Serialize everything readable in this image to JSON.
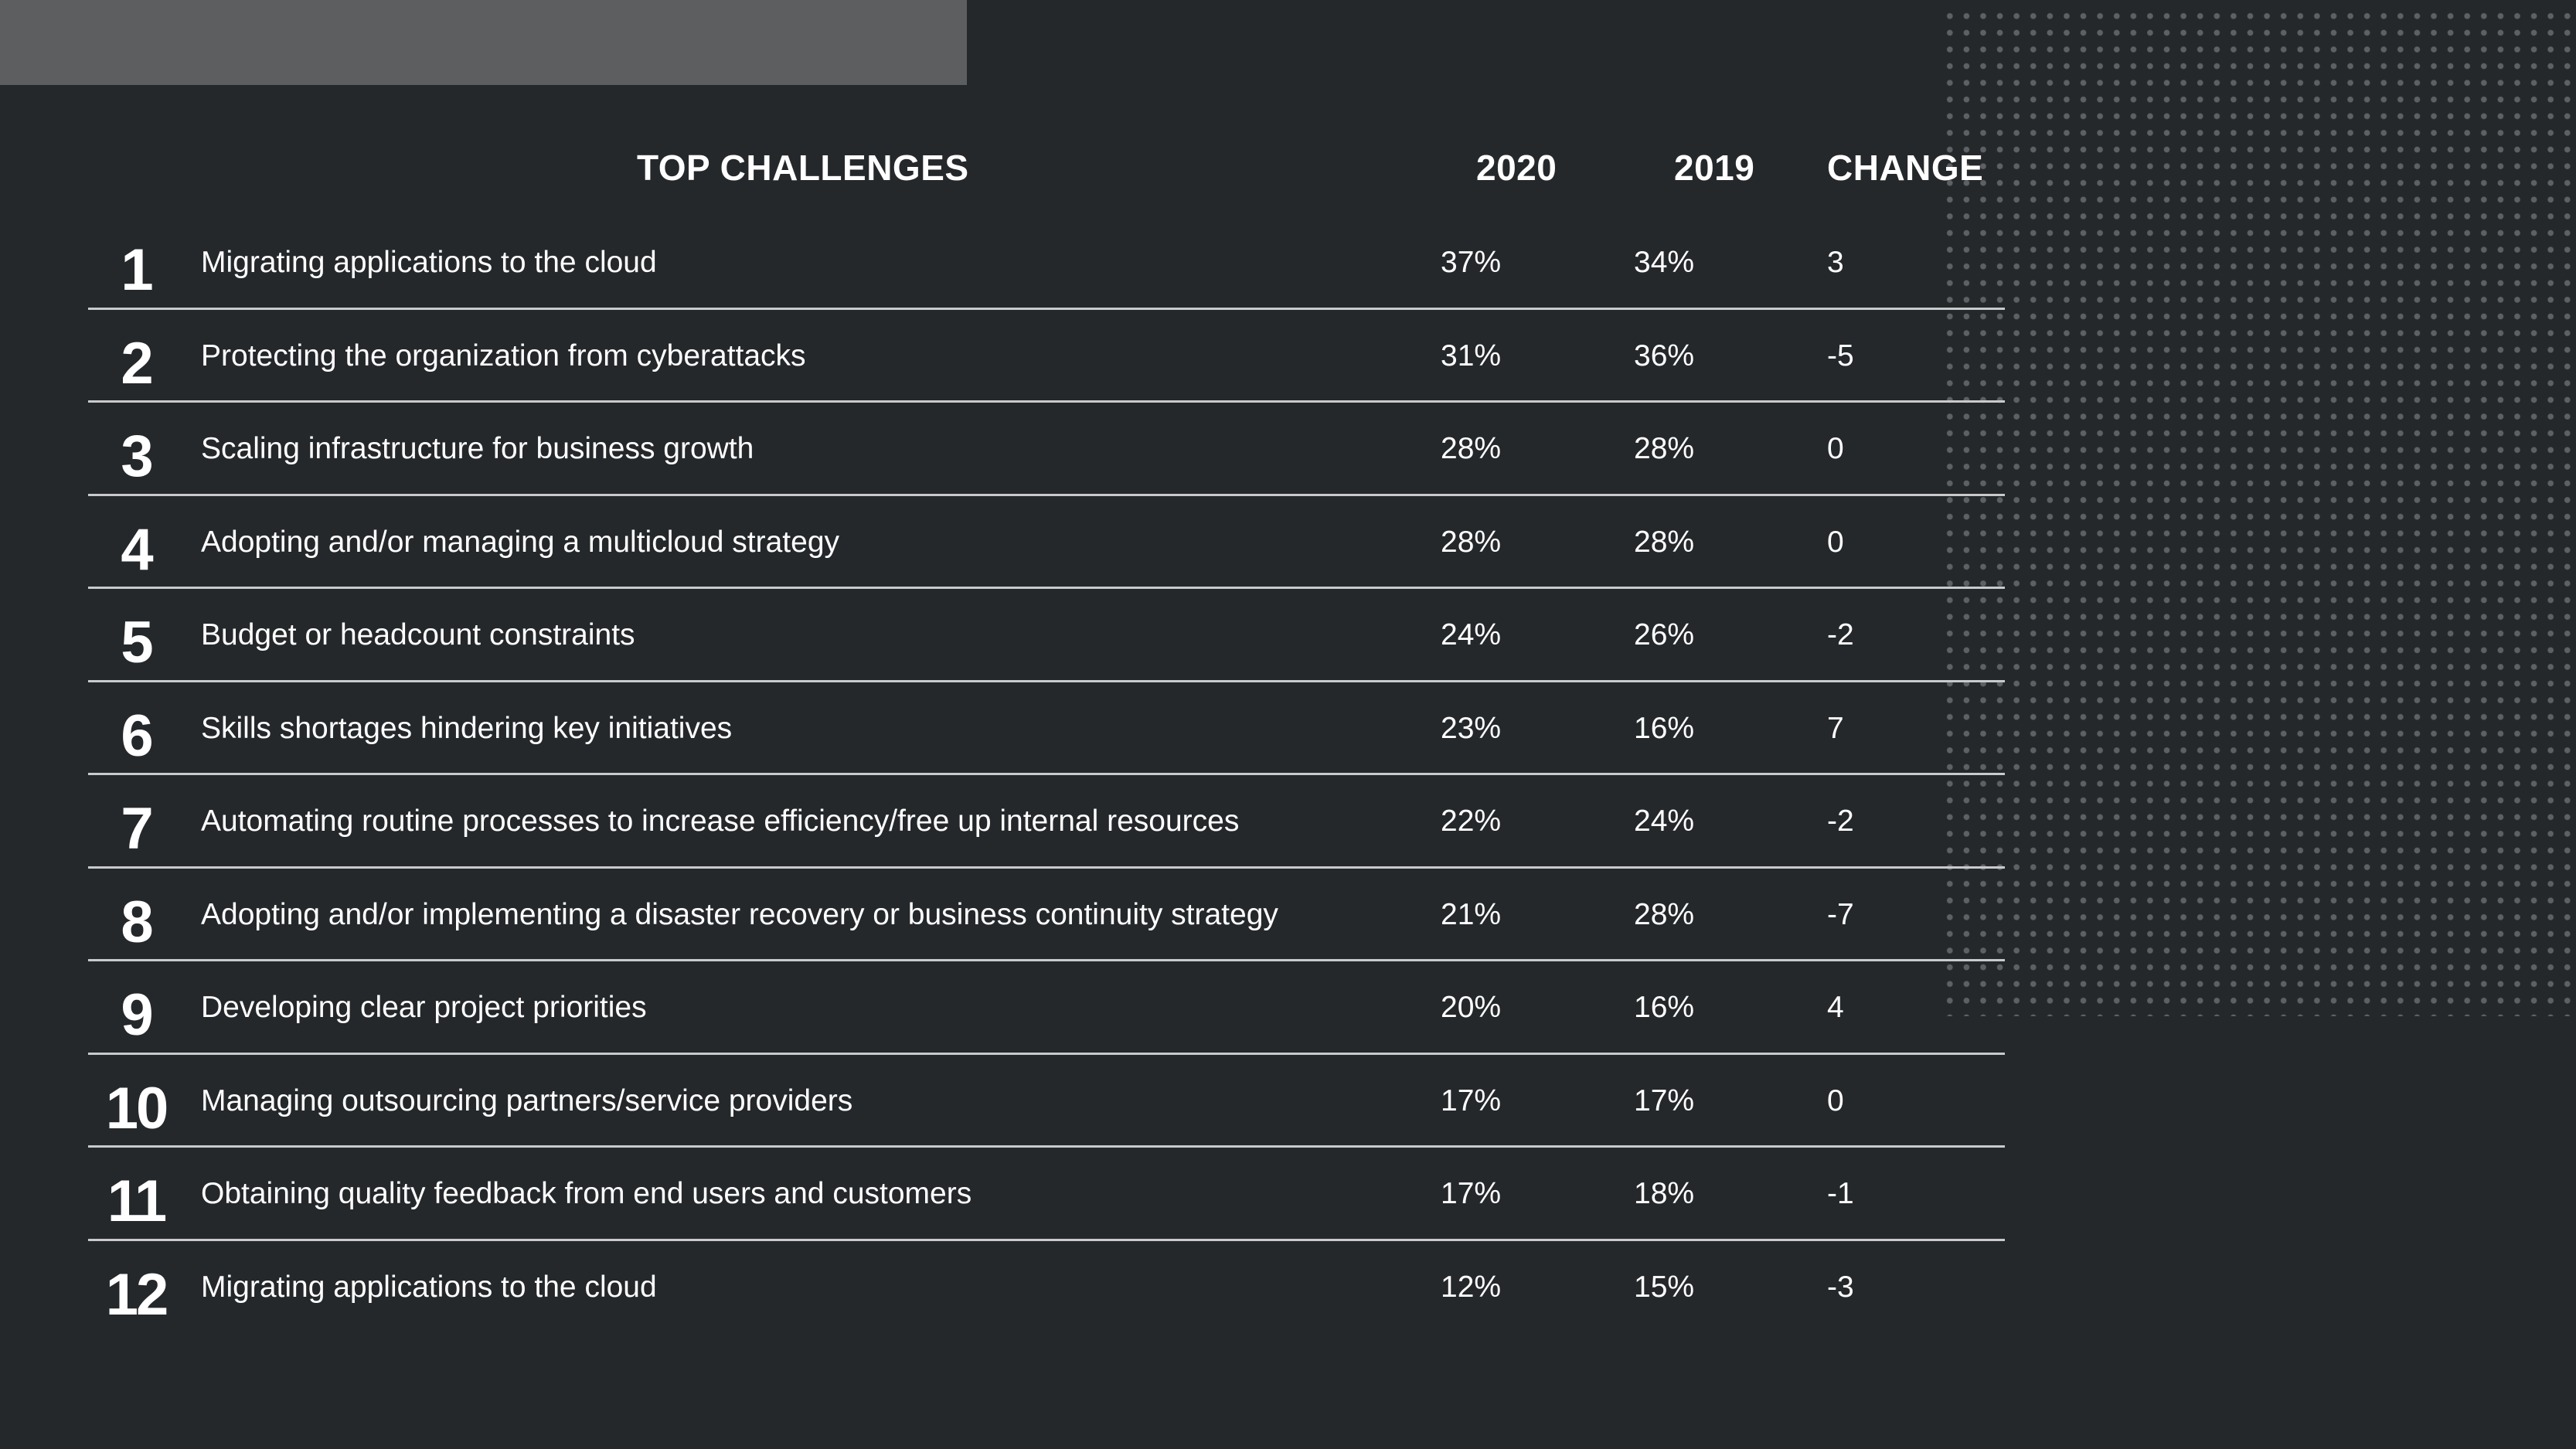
{
  "header": {
    "title": "TOP CHALLENGES",
    "col_2020": "2020",
    "col_2019": "2019",
    "col_change": "CHANGE"
  },
  "rows": [
    {
      "rank": "1",
      "label": "Migrating applications to the cloud",
      "v2020": "37%",
      "v2019": "34%",
      "change": "3"
    },
    {
      "rank": "2",
      "label": "Protecting the organization from cyberattacks",
      "v2020": "31%",
      "v2019": "36%",
      "change": "-5"
    },
    {
      "rank": "3",
      "label": "Scaling infrastructure for business growth",
      "v2020": "28%",
      "v2019": "28%",
      "change": "0"
    },
    {
      "rank": "4",
      "label": "Adopting and/or managing a multicloud strategy",
      "v2020": "28%",
      "v2019": "28%",
      "change": "0"
    },
    {
      "rank": "5",
      "label": "Budget or headcount constraints",
      "v2020": "24%",
      "v2019": "26%",
      "change": "-2"
    },
    {
      "rank": "6",
      "label": "Skills shortages hindering key initiatives",
      "v2020": "23%",
      "v2019": "16%",
      "change": "7"
    },
    {
      "rank": "7",
      "label": "Automating routine processes to increase efficiency/free up internal resources",
      "v2020": "22%",
      "v2019": "24%",
      "change": "-2"
    },
    {
      "rank": "8",
      "label": "Adopting and/or implementing a disaster recovery or business continuity strategy",
      "v2020": "21%",
      "v2019": "28%",
      "change": "-7"
    },
    {
      "rank": "9",
      "label": "Developing clear project priorities",
      "v2020": "20%",
      "v2019": "16%",
      "change": "4"
    },
    {
      "rank": "10",
      "label": "Managing outsourcing partners/service providers",
      "v2020": "17%",
      "v2019": "17%",
      "change": "0"
    },
    {
      "rank": "11",
      "label": "Obtaining quality feedback from end users and customers",
      "v2020": "17%",
      "v2019": "18%",
      "change": "-1"
    },
    {
      "rank": "12",
      "label": "Migrating applications to the cloud",
      "v2020": "12%",
      "v2019": "15%",
      "change": "-3"
    }
  ]
}
